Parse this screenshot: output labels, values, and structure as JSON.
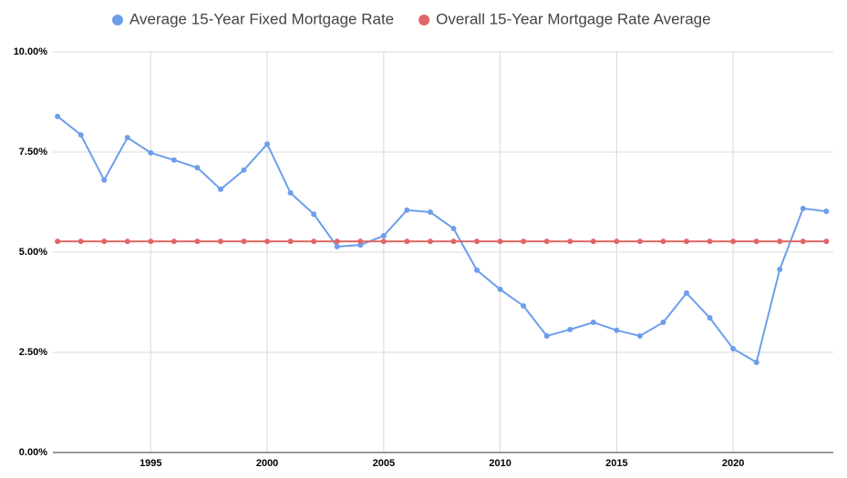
{
  "chart_data": {
    "type": "line",
    "x": [
      1991,
      1992,
      1993,
      1994,
      1995,
      1996,
      1997,
      1998,
      1999,
      2000,
      2001,
      2002,
      2003,
      2004,
      2005,
      2006,
      2007,
      2008,
      2009,
      2010,
      2011,
      2012,
      2013,
      2014,
      2015,
      2016,
      2017,
      2018,
      2019,
      2020,
      2021,
      2022,
      2023,
      2024
    ],
    "series": [
      {
        "name": "Average 15-Year Fixed Mortgage Rate",
        "color": "#6d9eeb",
        "values": [
          8.39,
          7.93,
          6.8,
          7.86,
          7.48,
          7.3,
          7.11,
          6.57,
          7.05,
          7.7,
          6.48,
          5.95,
          5.14,
          5.18,
          5.41,
          6.05,
          6.0,
          5.59,
          4.55,
          4.07,
          3.66,
          2.91,
          3.07,
          3.25,
          3.05,
          2.91,
          3.25,
          3.98,
          3.36,
          2.59,
          2.25,
          4.57,
          6.09,
          6.02
        ]
      },
      {
        "name": "Overall 15-Year Mortgage Rate Average",
        "color": "#e06666",
        "values": [
          5.27,
          5.27,
          5.27,
          5.27,
          5.27,
          5.27,
          5.27,
          5.27,
          5.27,
          5.27,
          5.27,
          5.27,
          5.27,
          5.27,
          5.27,
          5.27,
          5.27,
          5.27,
          5.27,
          5.27,
          5.27,
          5.27,
          5.27,
          5.27,
          5.27,
          5.27,
          5.27,
          5.27,
          5.27,
          5.27,
          5.27,
          5.27,
          5.27,
          5.27
        ]
      }
    ],
    "xlim": [
      1990.8,
      2024.3
    ],
    "xticks": [
      1995,
      2000,
      2005,
      2010,
      2015,
      2020
    ],
    "ylim": [
      0,
      10
    ],
    "yticks": [
      {
        "value": 0,
        "label": "0.00%"
      },
      {
        "value": 2.5,
        "label": "2.50%"
      },
      {
        "value": 5,
        "label": "5.00%"
      },
      {
        "value": 7.5,
        "label": "7.50%"
      },
      {
        "value": 10,
        "label": "10.00%"
      }
    ],
    "grid": true,
    "legend": "top"
  }
}
